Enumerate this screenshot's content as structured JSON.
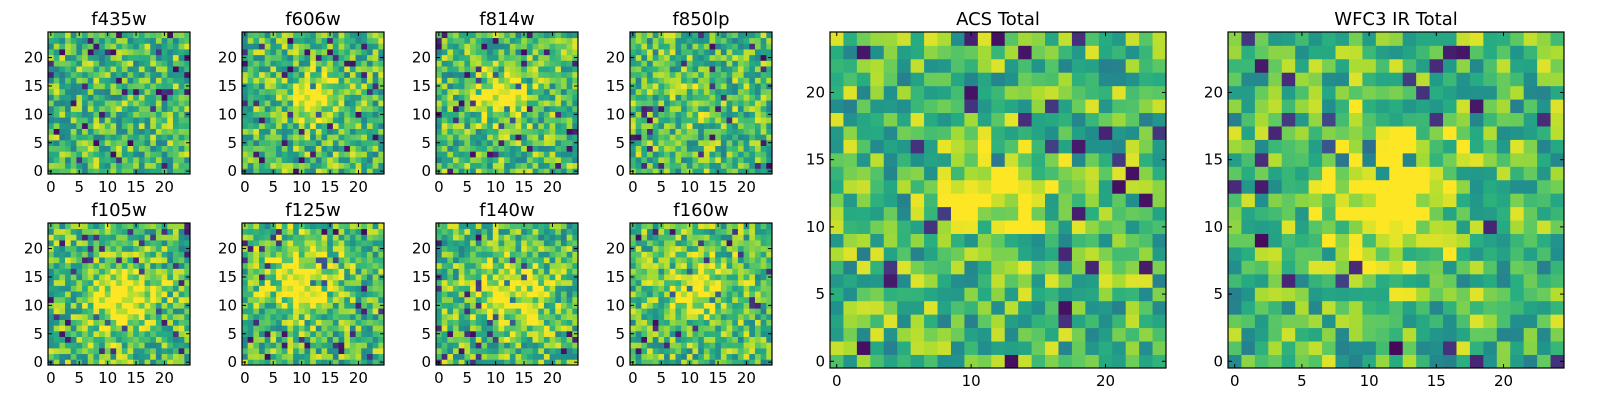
{
  "chart_data": [
    {
      "type": "heatmap",
      "title": "f435w",
      "colormap": "viridis",
      "grid_size": [
        25,
        25
      ],
      "seed": 11,
      "value_range": [
        0,
        1
      ],
      "blob": {
        "x": 12,
        "y": 12,
        "strength": 0.0,
        "radius": 4
      },
      "xticks": [
        {
          "value": 0,
          "label": "0"
        },
        {
          "value": 5,
          "label": "5"
        },
        {
          "value": 10,
          "label": "10"
        },
        {
          "value": 15,
          "label": "15"
        },
        {
          "value": 20,
          "label": "20"
        }
      ],
      "yticks": [
        {
          "value": 0,
          "label": "0"
        },
        {
          "value": 5,
          "label": "5"
        },
        {
          "value": 10,
          "label": "10"
        },
        {
          "value": 15,
          "label": "15"
        },
        {
          "value": 20,
          "label": "20"
        }
      ],
      "xlim": [
        -0.5,
        24.5
      ],
      "ylim": [
        -0.5,
        24.5
      ],
      "xlabel": "",
      "ylabel": ""
    },
    {
      "type": "heatmap",
      "title": "f606w",
      "colormap": "viridis",
      "grid_size": [
        25,
        25
      ],
      "seed": 23,
      "value_range": [
        0,
        1
      ],
      "blob": {
        "x": 12,
        "y": 13,
        "strength": 0.45,
        "radius": 2.5
      },
      "xticks": [
        {
          "value": 0,
          "label": "0"
        },
        {
          "value": 5,
          "label": "5"
        },
        {
          "value": 10,
          "label": "10"
        },
        {
          "value": 15,
          "label": "15"
        },
        {
          "value": 20,
          "label": "20"
        }
      ],
      "yticks": [
        {
          "value": 0,
          "label": "0"
        },
        {
          "value": 5,
          "label": "5"
        },
        {
          "value": 10,
          "label": "10"
        },
        {
          "value": 15,
          "label": "15"
        },
        {
          "value": 20,
          "label": "20"
        }
      ],
      "xlim": [
        -0.5,
        24.5
      ],
      "ylim": [
        -0.5,
        24.5
      ],
      "xlabel": "",
      "ylabel": ""
    },
    {
      "type": "heatmap",
      "title": "f814w",
      "colormap": "viridis",
      "grid_size": [
        25,
        25
      ],
      "seed": 37,
      "value_range": [
        0,
        1
      ],
      "blob": {
        "x": 11,
        "y": 13,
        "strength": 0.35,
        "radius": 3
      },
      "xticks": [
        {
          "value": 0,
          "label": "0"
        },
        {
          "value": 5,
          "label": "5"
        },
        {
          "value": 10,
          "label": "10"
        },
        {
          "value": 15,
          "label": "15"
        },
        {
          "value": 20,
          "label": "20"
        }
      ],
      "yticks": [
        {
          "value": 0,
          "label": "0"
        },
        {
          "value": 5,
          "label": "5"
        },
        {
          "value": 10,
          "label": "10"
        },
        {
          "value": 15,
          "label": "15"
        },
        {
          "value": 20,
          "label": "20"
        }
      ],
      "xlim": [
        -0.5,
        24.5
      ],
      "ylim": [
        -0.5,
        24.5
      ],
      "xlabel": "",
      "ylabel": ""
    },
    {
      "type": "heatmap",
      "title": "f850lp",
      "colormap": "viridis",
      "grid_size": [
        25,
        25
      ],
      "seed": 41,
      "value_range": [
        0,
        1
      ],
      "blob": {
        "x": 12,
        "y": 12,
        "strength": 0.1,
        "radius": 3
      },
      "xticks": [
        {
          "value": 0,
          "label": "0"
        },
        {
          "value": 5,
          "label": "5"
        },
        {
          "value": 10,
          "label": "10"
        },
        {
          "value": 15,
          "label": "15"
        },
        {
          "value": 20,
          "label": "20"
        }
      ],
      "yticks": [
        {
          "value": 0,
          "label": "0"
        },
        {
          "value": 5,
          "label": "5"
        },
        {
          "value": 10,
          "label": "10"
        },
        {
          "value": 15,
          "label": "15"
        },
        {
          "value": 20,
          "label": "20"
        }
      ],
      "xlim": [
        -0.5,
        24.5
      ],
      "ylim": [
        -0.5,
        24.5
      ],
      "xlabel": "",
      "ylabel": ""
    },
    {
      "type": "heatmap",
      "title": "f105w",
      "colormap": "viridis",
      "grid_size": [
        25,
        25
      ],
      "seed": 53,
      "value_range": [
        0,
        1
      ],
      "blob": {
        "x": 13,
        "y": 11,
        "strength": 0.4,
        "radius": 4
      },
      "xticks": [
        {
          "value": 0,
          "label": "0"
        },
        {
          "value": 5,
          "label": "5"
        },
        {
          "value": 10,
          "label": "10"
        },
        {
          "value": 15,
          "label": "15"
        },
        {
          "value": 20,
          "label": "20"
        }
      ],
      "yticks": [
        {
          "value": 0,
          "label": "0"
        },
        {
          "value": 5,
          "label": "5"
        },
        {
          "value": 10,
          "label": "10"
        },
        {
          "value": 15,
          "label": "15"
        },
        {
          "value": 20,
          "label": "20"
        }
      ],
      "xlim": [
        -0.5,
        24.5
      ],
      "ylim": [
        -0.5,
        24.5
      ],
      "xlabel": "",
      "ylabel": ""
    },
    {
      "type": "heatmap",
      "title": "f125w",
      "colormap": "viridis",
      "grid_size": [
        25,
        25
      ],
      "seed": 67,
      "value_range": [
        0,
        1
      ],
      "blob": {
        "x": 10,
        "y": 15,
        "strength": 0.35,
        "radius": 4
      },
      "xticks": [
        {
          "value": 0,
          "label": "0"
        },
        {
          "value": 5,
          "label": "5"
        },
        {
          "value": 10,
          "label": "10"
        },
        {
          "value": 15,
          "label": "15"
        },
        {
          "value": 20,
          "label": "20"
        }
      ],
      "yticks": [
        {
          "value": 0,
          "label": "0"
        },
        {
          "value": 5,
          "label": "5"
        },
        {
          "value": 10,
          "label": "10"
        },
        {
          "value": 15,
          "label": "15"
        },
        {
          "value": 20,
          "label": "20"
        }
      ],
      "xlim": [
        -0.5,
        24.5
      ],
      "ylim": [
        -0.5,
        24.5
      ],
      "xlabel": "",
      "ylabel": ""
    },
    {
      "type": "heatmap",
      "title": "f140w",
      "colormap": "viridis",
      "grid_size": [
        25,
        25
      ],
      "seed": 79,
      "value_range": [
        0,
        1
      ],
      "blob": {
        "x": 13,
        "y": 12,
        "strength": 0.35,
        "radius": 4
      },
      "xticks": [
        {
          "value": 0,
          "label": "0"
        },
        {
          "value": 5,
          "label": "5"
        },
        {
          "value": 10,
          "label": "10"
        },
        {
          "value": 15,
          "label": "15"
        },
        {
          "value": 20,
          "label": "20"
        }
      ],
      "yticks": [
        {
          "value": 0,
          "label": "0"
        },
        {
          "value": 5,
          "label": "5"
        },
        {
          "value": 10,
          "label": "10"
        },
        {
          "value": 15,
          "label": "15"
        },
        {
          "value": 20,
          "label": "20"
        }
      ],
      "xlim": [
        -0.5,
        24.5
      ],
      "ylim": [
        -0.5,
        24.5
      ],
      "xlabel": "",
      "ylabel": ""
    },
    {
      "type": "heatmap",
      "title": "f160w",
      "colormap": "viridis",
      "grid_size": [
        25,
        25
      ],
      "seed": 83,
      "value_range": [
        0,
        1
      ],
      "blob": {
        "x": 12,
        "y": 13,
        "strength": 0.3,
        "radius": 4
      },
      "xticks": [
        {
          "value": 0,
          "label": "0"
        },
        {
          "value": 5,
          "label": "5"
        },
        {
          "value": 10,
          "label": "10"
        },
        {
          "value": 15,
          "label": "15"
        },
        {
          "value": 20,
          "label": "20"
        }
      ],
      "yticks": [
        {
          "value": 0,
          "label": "0"
        },
        {
          "value": 5,
          "label": "5"
        },
        {
          "value": 10,
          "label": "10"
        },
        {
          "value": 15,
          "label": "15"
        },
        {
          "value": 20,
          "label": "20"
        }
      ],
      "xlim": [
        -0.5,
        24.5
      ],
      "ylim": [
        -0.5,
        24.5
      ],
      "xlabel": "",
      "ylabel": ""
    },
    {
      "type": "heatmap",
      "title": "ACS Total",
      "colormap": "viridis",
      "grid_size": [
        25,
        25
      ],
      "seed": 97,
      "value_range": [
        0,
        1
      ],
      "blob": {
        "x": 12,
        "y": 13,
        "strength": 0.4,
        "radius": 2.5
      },
      "xticks": [
        {
          "value": 0,
          "label": "0"
        },
        {
          "value": 10,
          "label": "10"
        },
        {
          "value": 20,
          "label": "20"
        }
      ],
      "yticks": [
        {
          "value": 0,
          "label": "0"
        },
        {
          "value": 5,
          "label": "5"
        },
        {
          "value": 10,
          "label": "10"
        },
        {
          "value": 15,
          "label": "15"
        },
        {
          "value": 20,
          "label": "20"
        }
      ],
      "xlim": [
        -0.5,
        24.5
      ],
      "ylim": [
        -0.5,
        24.5
      ],
      "xlabel": "",
      "ylabel": ""
    },
    {
      "type": "heatmap",
      "title": "WFC3 IR Total",
      "colormap": "viridis",
      "grid_size": [
        25,
        25
      ],
      "seed": 101,
      "value_range": [
        0,
        1
      ],
      "blob": {
        "x": 11,
        "y": 13,
        "strength": 0.45,
        "radius": 3.5
      },
      "xticks": [
        {
          "value": 0,
          "label": "0"
        },
        {
          "value": 5,
          "label": "5"
        },
        {
          "value": 10,
          "label": "10"
        },
        {
          "value": 15,
          "label": "15"
        },
        {
          "value": 20,
          "label": "20"
        }
      ],
      "yticks": [
        {
          "value": 0,
          "label": "0"
        },
        {
          "value": 5,
          "label": "5"
        },
        {
          "value": 10,
          "label": "10"
        },
        {
          "value": 15,
          "label": "15"
        },
        {
          "value": 20,
          "label": "20"
        }
      ],
      "xlim": [
        -0.5,
        24.5
      ],
      "ylim": [
        -0.5,
        24.5
      ],
      "xlabel": "",
      "ylabel": ""
    }
  ]
}
